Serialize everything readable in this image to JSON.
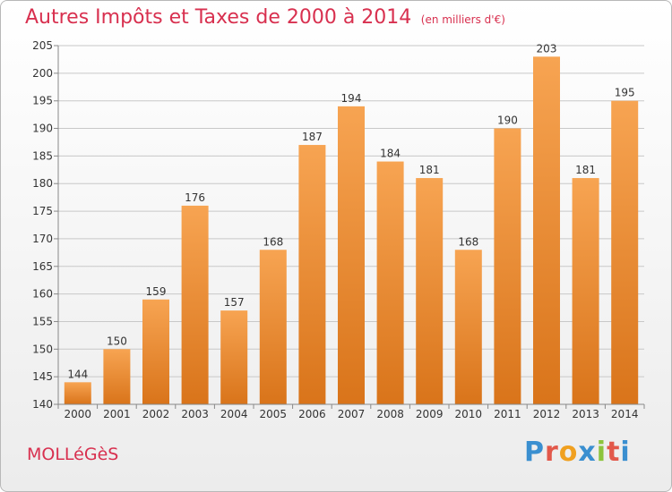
{
  "title": "Autres Impôts et Taxes de 2000 à 2014",
  "unit": "(en milliers d'€)",
  "commune": "MOLLéGèS",
  "brand": {
    "letters": [
      "P",
      "r",
      "o",
      "x",
      "i",
      "t",
      "i"
    ],
    "colors": [
      "#3a8fd0",
      "#e2584a",
      "#f0a020",
      "#3a8fd0",
      "#8cc43c",
      "#e2584a",
      "#3a8fd0"
    ]
  },
  "colors": {
    "bar_light": "#f7a452",
    "bar_dark": "#d9741a",
    "title": "#d8304f",
    "grid": "#c8c8c8",
    "axis_text": "#333333"
  },
  "chart_data": {
    "type": "bar",
    "categories": [
      "2000",
      "2001",
      "2002",
      "2003",
      "2004",
      "2005",
      "2006",
      "2007",
      "2008",
      "2009",
      "2010",
      "2011",
      "2012",
      "2013",
      "2014"
    ],
    "values": [
      144,
      150,
      159,
      176,
      157,
      168,
      187,
      194,
      184,
      181,
      168,
      190,
      203,
      181,
      195
    ],
    "ylim": [
      140,
      205
    ],
    "yticks": [
      140,
      145,
      150,
      155,
      160,
      165,
      170,
      175,
      180,
      185,
      190,
      195,
      200,
      205
    ],
    "grid": true,
    "legend": "none"
  }
}
